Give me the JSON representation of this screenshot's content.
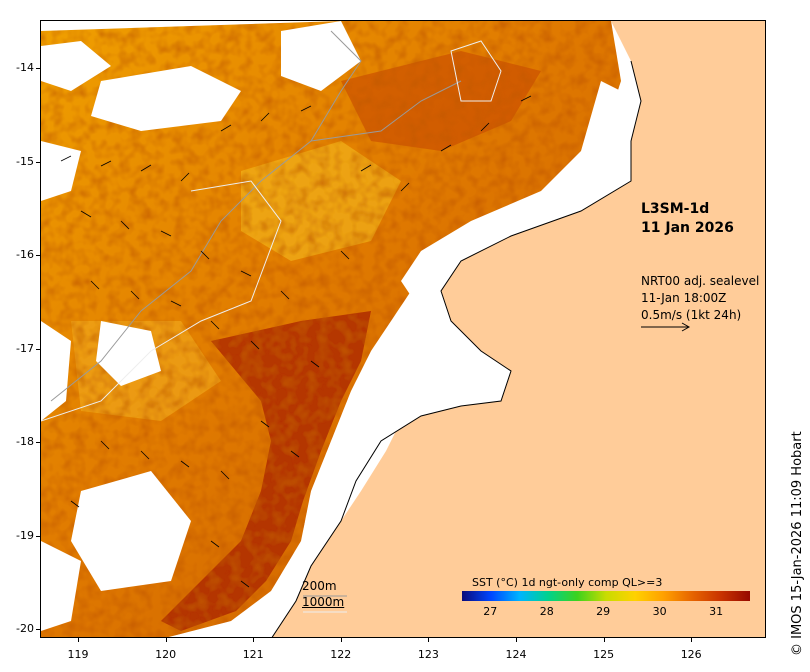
{
  "map": {
    "product": "L3SM-1d",
    "date": "11 Jan 2026",
    "vector_legend": {
      "line1": "NRT00 adj. sealevel",
      "line2": "11-Jan 18:00Z",
      "line3": "0.5m/s (1kt 24h)"
    },
    "depth_legend": {
      "line1": "200m",
      "line2": "1000m"
    },
    "colorbar": {
      "title": "SST (°C) 1d ngt-only comp QL>=3",
      "labels": [
        "27",
        "28",
        "29",
        "30",
        "31"
      ],
      "min": 26.5,
      "max": 31.6,
      "colors": [
        "#0b0b7a",
        "#0046ff",
        "#00b4ff",
        "#00d28c",
        "#3cd21e",
        "#c8dc00",
        "#ffd200",
        "#ffa000",
        "#e66400",
        "#c83200",
        "#960a00"
      ]
    },
    "credit": "© IMOS 15-Jan-2026 11:09 Hobart",
    "lat_ticks": [
      {
        "value": -14,
        "label": "-14"
      },
      {
        "value": -15,
        "label": "-15"
      },
      {
        "value": -16,
        "label": "-16"
      },
      {
        "value": -17,
        "label": "-17"
      },
      {
        "value": -18,
        "label": "-18"
      },
      {
        "value": -19,
        "label": "-19"
      },
      {
        "value": -20,
        "label": "-20"
      }
    ],
    "lon_ticks": [
      {
        "value": 119,
        "label": "119"
      },
      {
        "value": 120,
        "label": "120"
      },
      {
        "value": 121,
        "label": "121"
      },
      {
        "value": 122,
        "label": "122"
      },
      {
        "value": 123,
        "label": "123"
      },
      {
        "value": 124,
        "label": "124"
      },
      {
        "value": 125,
        "label": "125"
      },
      {
        "value": 126,
        "label": "126"
      }
    ],
    "land_color": "#ffcc99",
    "nodata_color": "#ffffff"
  }
}
